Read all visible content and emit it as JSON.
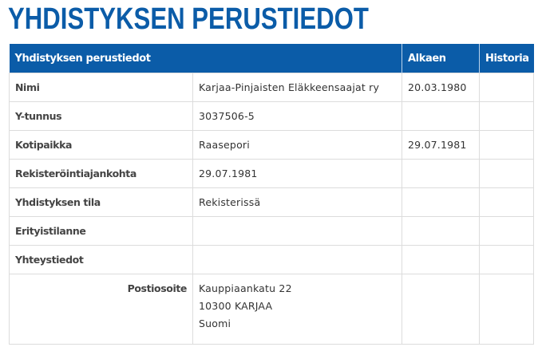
{
  "page_title": "YHDISTYKSEN PERUSTIEDOT",
  "table": {
    "headers": [
      "Yhdistyksen perustiedot",
      "Alkaen",
      "Historia"
    ],
    "rows": [
      {
        "label": "Nimi",
        "value": "Karjaa-Pinjaisten Eläkkeensaajat ry",
        "alkaen": "20.03.1980",
        "historia": ""
      },
      {
        "label": "Y-tunnus",
        "value": "3037506-5",
        "alkaen": "",
        "historia": ""
      },
      {
        "label": "Kotipaikka",
        "value": "Raasepori",
        "alkaen": "29.07.1981",
        "historia": ""
      },
      {
        "label": "Rekisteröintiajankohta",
        "value": "29.07.1981",
        "alkaen": "",
        "historia": ""
      },
      {
        "label": "Yhdistyksen tila",
        "value": "Rekisterissä",
        "alkaen": "",
        "historia": ""
      },
      {
        "label": "Erityistilanne",
        "value": "",
        "alkaen": "",
        "historia": ""
      },
      {
        "label": "Yhteystiedot",
        "value": "",
        "alkaen": "",
        "historia": ""
      }
    ],
    "address": {
      "label": "Postiosoite",
      "lines": [
        "Kauppiaankatu 22",
        "10300 KARJAA",
        "Suomi"
      ]
    }
  },
  "colors": {
    "brand": "#0b5ca8",
    "border": "#dcdcdc"
  }
}
